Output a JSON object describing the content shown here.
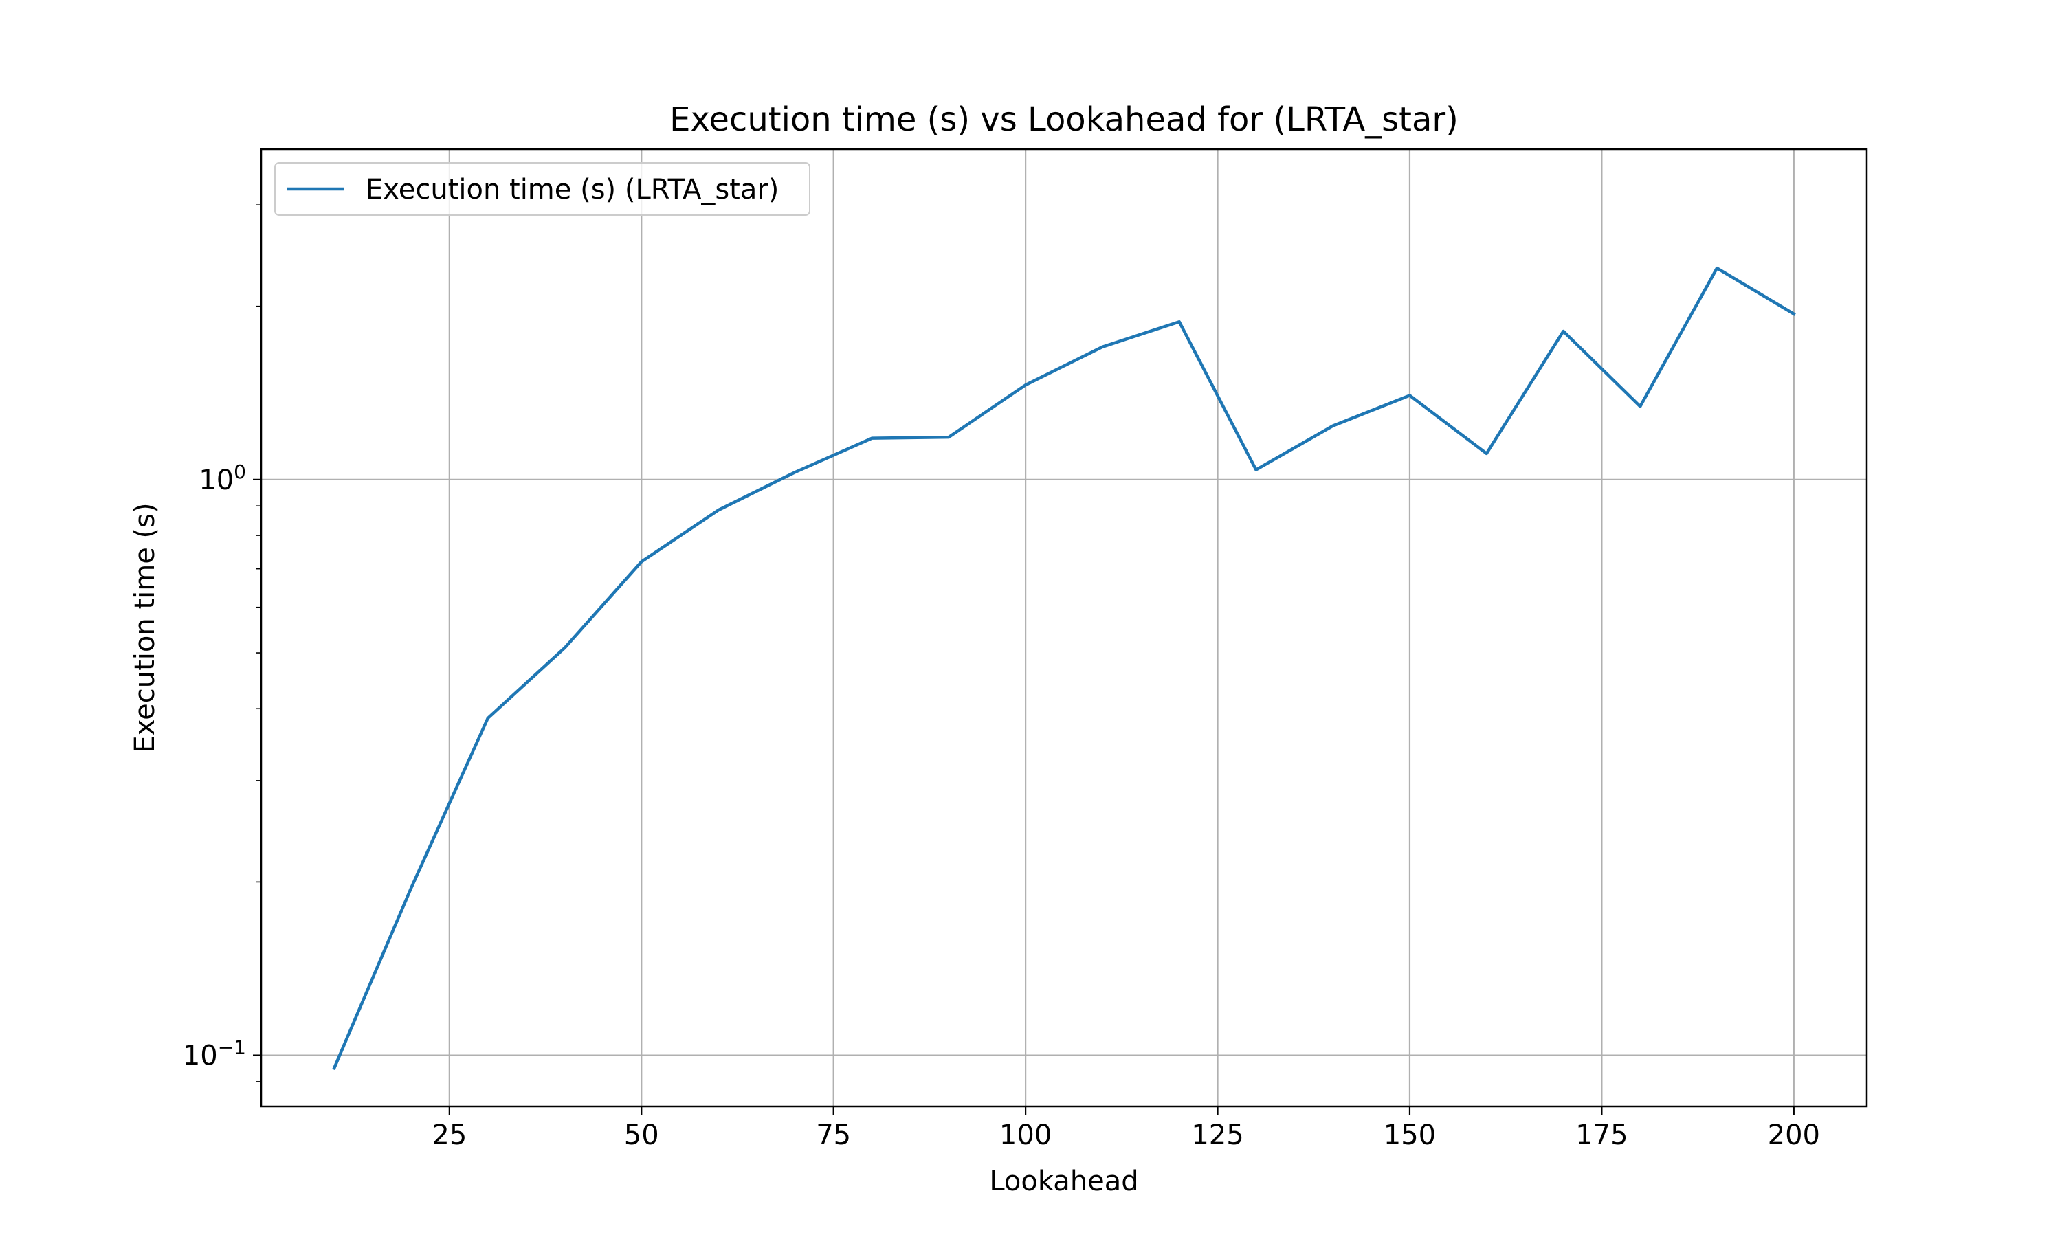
{
  "chart_data": {
    "type": "line",
    "title": "Execution time (s) vs Lookahead for  (LRTA_star)",
    "xlabel": "Lookahead",
    "ylabel": "Execution time (s)",
    "y_scale": "log",
    "xlim": [
      0.5,
      209.5
    ],
    "ylim": [
      0.0815,
      3.75
    ],
    "x_ticks": [
      {
        "value": 25,
        "label": "25"
      },
      {
        "value": 50,
        "label": "50"
      },
      {
        "value": 75,
        "label": "75"
      },
      {
        "value": 100,
        "label": "100"
      },
      {
        "value": 125,
        "label": "125"
      },
      {
        "value": 150,
        "label": "150"
      },
      {
        "value": 175,
        "label": "175"
      },
      {
        "value": 200,
        "label": "200"
      }
    ],
    "y_ticks": [
      {
        "value": 0.1,
        "base": "10",
        "exp": "−1"
      },
      {
        "value": 1,
        "base": "10",
        "exp": "0"
      }
    ],
    "grid": true,
    "legend_position": "top-left",
    "series": [
      {
        "name": "Execution time (s) (LRTA_star)",
        "color": "#1f77b4",
        "x": [
          10,
          20,
          30,
          40,
          50,
          60,
          70,
          80,
          90,
          100,
          110,
          120,
          130,
          140,
          150,
          160,
          170,
          180,
          190,
          200
        ],
        "y": [
          0.095,
          0.195,
          0.385,
          0.51,
          0.72,
          0.885,
          1.03,
          1.18,
          1.185,
          1.46,
          1.7,
          1.88,
          1.04,
          1.24,
          1.4,
          1.11,
          1.81,
          1.34,
          2.33,
          1.94
        ]
      }
    ]
  }
}
